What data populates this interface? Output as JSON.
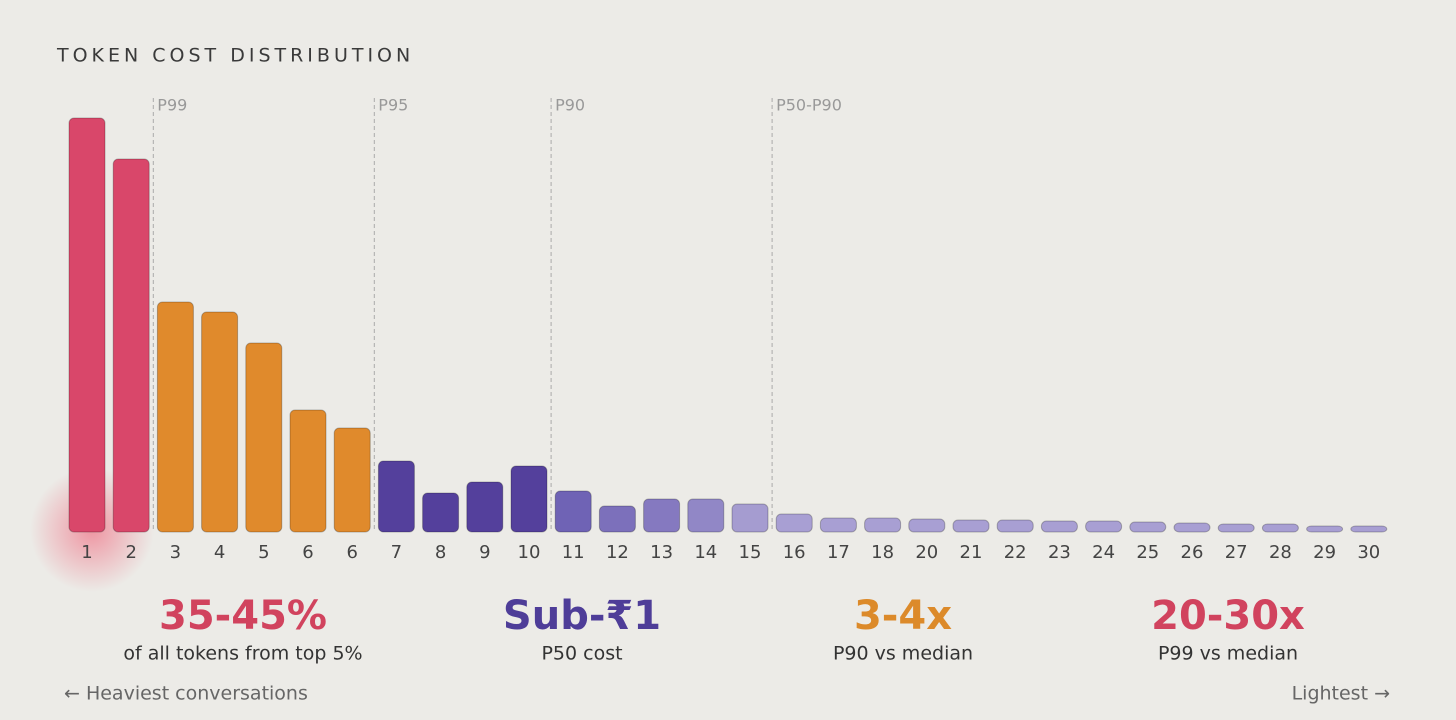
{
  "chart_data": {
    "type": "bar",
    "title": "TOKEN COST DISTRIBUTION",
    "categories": [
      "1",
      "2",
      "3",
      "4",
      "5",
      "6",
      "6",
      "7",
      "8",
      "9",
      "10",
      "11",
      "12",
      "13",
      "14",
      "15",
      "16",
      "17",
      "18",
      "20",
      "21",
      "22",
      "23",
      "24",
      "25",
      "26",
      "27",
      "28",
      "29",
      "30"
    ],
    "values": [
      414,
      373,
      230,
      220,
      189,
      122,
      104,
      71,
      39,
      50,
      66,
      41,
      26,
      33,
      33,
      28,
      18,
      14,
      14,
      13,
      12,
      12,
      11,
      11,
      10,
      9,
      8,
      8,
      6,
      6
    ],
    "colors": [
      "#d9476a",
      "#d9476a",
      "#e08a2c",
      "#e08a2c",
      "#e08a2c",
      "#e08a2c",
      "#e08a2c",
      "#54409c",
      "#54409c",
      "#54409c",
      "#54409c",
      "#6f63b5",
      "#7c70bb",
      "#8579c0",
      "#9187c6",
      "#a59cd0",
      "#a89fd3",
      "#a89fd3",
      "#a89fd3",
      "#a89fd3",
      "#a89fd3",
      "#a89fd3",
      "#a89fd3",
      "#a89fd3",
      "#a89fd3",
      "#a89fd3",
      "#a89fd3",
      "#a89fd3",
      "#a89fd3",
      "#a89fd3"
    ],
    "boundary_labels": [
      null,
      null,
      "P99",
      null,
      null,
      null,
      null,
      "P95",
      null,
      null,
      null,
      "P90",
      null,
      null,
      null,
      null,
      "P50-P90",
      null,
      null,
      null,
      null,
      null,
      null,
      null,
      null,
      null,
      null,
      null,
      null,
      null
    ],
    "stats": [
      {
        "value": "35-45%",
        "label": "of all tokens from top 5%",
        "color": "#d1435e"
      },
      {
        "value": "Sub-₹1",
        "label": "P50 cost",
        "color": "#4e3d98"
      },
      {
        "value": "3-4x",
        "label": "P90 vs median",
        "color": "#dc8a2a"
      },
      {
        "value": "20-30x",
        "label": "P99 vs median",
        "color": "#d1435e"
      }
    ],
    "footer_left": "← Heaviest conversations",
    "footer_right": "Lightest →"
  }
}
